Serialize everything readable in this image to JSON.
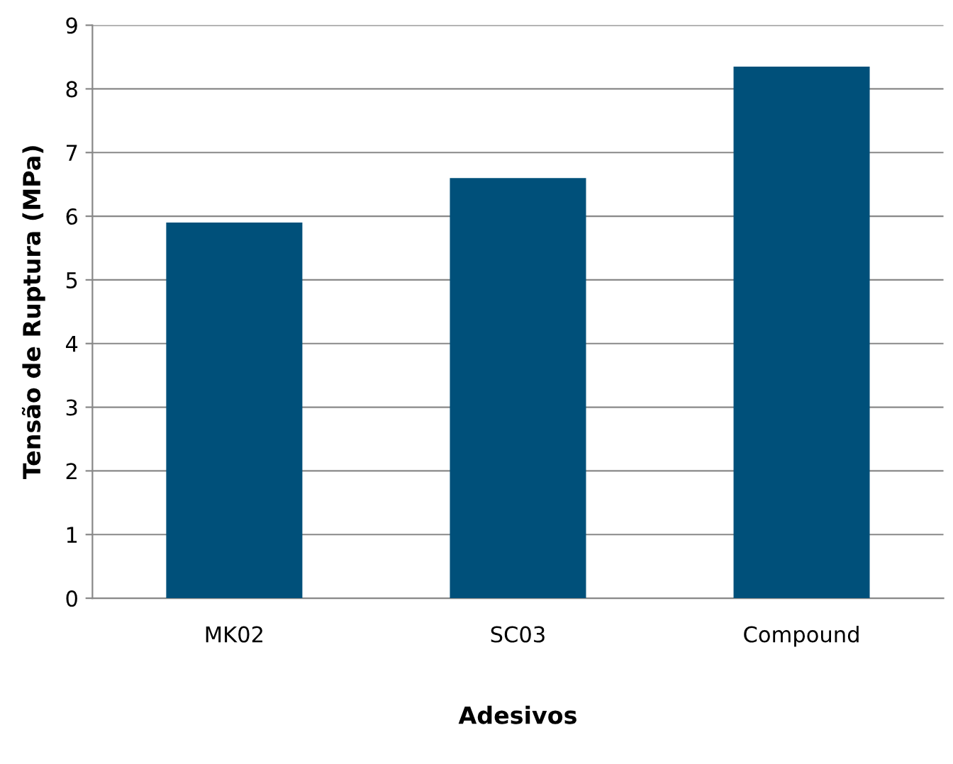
{
  "chart_data": {
    "type": "bar",
    "xlabel": "Adesivos",
    "ylabel": "Tensão de Ruptura (MPa)",
    "categories": [
      "MK02",
      "SC03",
      "Compound"
    ],
    "values": [
      5.9,
      6.6,
      8.35
    ],
    "color": "#00507a",
    "ylim": [
      0,
      9
    ],
    "yticks": [
      0,
      1,
      2,
      3,
      4,
      5,
      6,
      7,
      8,
      9
    ],
    "grid": "y"
  }
}
